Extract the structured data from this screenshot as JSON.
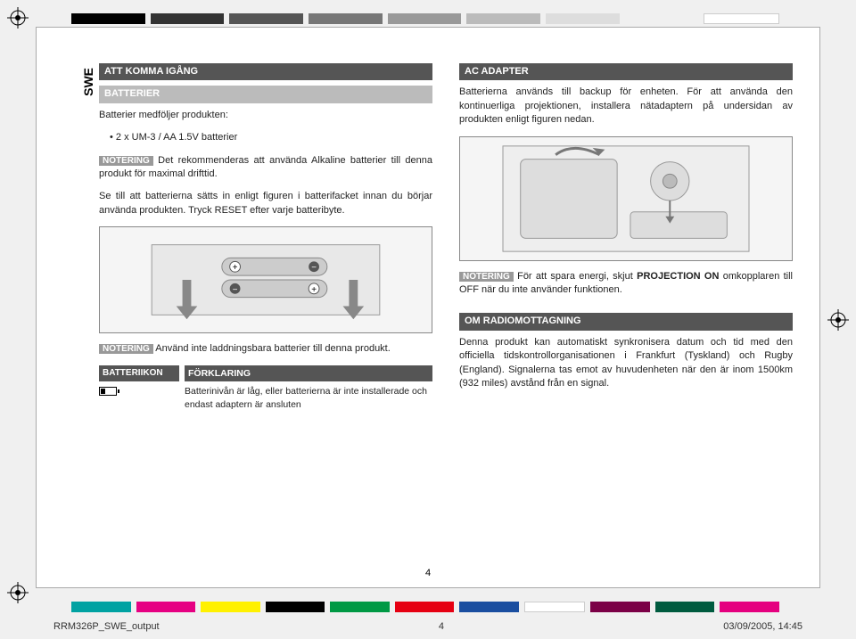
{
  "lang_label": "SWE",
  "color_bars_top": [
    "#000000",
    "#333333",
    "#555555",
    "#777777",
    "#999999",
    "#bbbbbb",
    "#dddddd",
    "#f0f0f0",
    "#ffffff"
  ],
  "color_bars_bottom": [
    "#00a2a2",
    "#e60082",
    "#fff100",
    "#000000",
    "#009944",
    "#e60012",
    "#1a4ea0",
    "#ffffff",
    "#7b0046",
    "#005b3f",
    "#e5007f"
  ],
  "left": {
    "h1": "ATT KOMMA IGÅNG",
    "h2": "BATTERIER",
    "p1": "Batterier medföljer produkten:",
    "bullet1": "2 x UM-3 / AA 1.5V batterier",
    "note_tag": "NOTERING",
    "note1_text": "Det rekommenderas att använda Alkaline batterier till denna produkt för maximal drifttid.",
    "p2": "Se till att batterierna sätts in enligt figuren i batterifacket innan du börjar använda produkten. Tryck RESET efter varje batteribyte.",
    "note2_text": "Använd inte laddningsbara batterier till denna produkt.",
    "table_hdr_left": "BATTERIIKON",
    "table_hdr_right": "FÖRKLARING",
    "table_row1_right": "Batterinivån är låg, eller batterierna är inte installerade och endast adaptern är ansluten"
  },
  "right": {
    "h1": "AC ADAPTER",
    "p1": "Batterierna används till backup för enheten. För att använda den kontinuerliga projektionen, installera nätadaptern på undersidan av produkten enligt figuren nedan.",
    "note_tag": "NOTERING",
    "note1_text_a": "För att spara energi, skjut ",
    "note1_bold": "PROJECTION ON",
    "note1_text_b": " omkopplaren till OFF när du inte använder funktionen.",
    "h2": "OM RADIOMOTTAGNING",
    "p2": "Denna produkt kan automatiskt synkronisera datum och tid med den officiella tidskontrollorganisationen i Frankfurt (Tyskland) och Rugby (England). Signalerna tas emot av huvudenheten när den är inom 1500km (932 miles) avstånd från en signal."
  },
  "page_number": "4",
  "footer_left": "RRM326P_SWE_output",
  "footer_center": "4",
  "footer_right": "03/09/2005, 14:45"
}
